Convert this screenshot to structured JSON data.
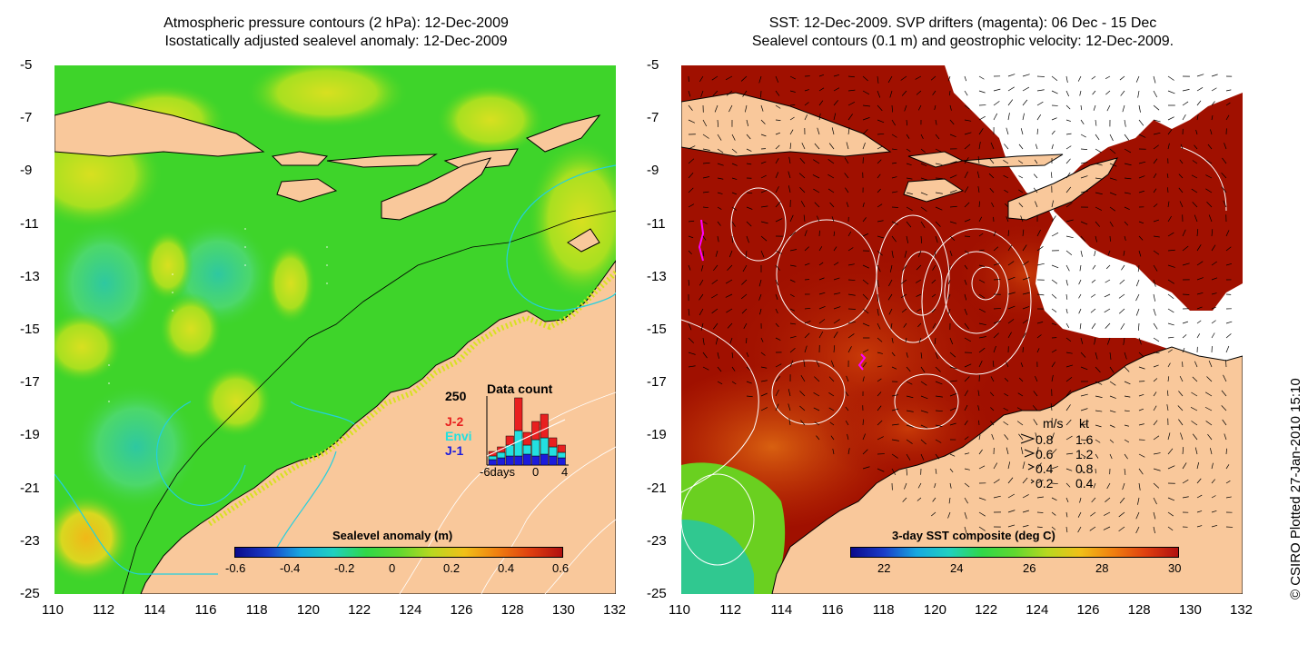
{
  "left_panel": {
    "title_line1": "Atmospheric pressure contours (2 hPa): 12-Dec-2009",
    "title_line2": "Isostatically adjusted sealevel anomaly: 12-Dec-2009",
    "colorbar_title": "Sealevel anomaly (m)",
    "colorbar_ticks": [
      "-0.6",
      "-0.4",
      "-0.2",
      "0",
      "0.2",
      "0.4",
      "0.6"
    ],
    "inset": {
      "title": "Data count",
      "ymax": "250",
      "xlabels": [
        "-6days",
        "0",
        "4"
      ],
      "legend": [
        {
          "label": "J-2",
          "color": "#e82020"
        },
        {
          "label": "Envi",
          "color": "#22e0e0"
        },
        {
          "label": "J-1",
          "color": "#1c1cdc"
        }
      ]
    }
  },
  "right_panel": {
    "title_line1": "SST: 12-Dec-2009. SVP drifters (magenta): 06 Dec - 15 Dec",
    "title_line2": "Sealevel contours (0.1 m) and geostrophic velocity: 12-Dec-2009.",
    "colorbar_title": "3-day SST composite (deg C)",
    "colorbar_ticks": [
      "22",
      "24",
      "26",
      "28",
      "30"
    ],
    "velocity_legend": {
      "header_ms": "m/s",
      "header_kt": "kt",
      "rows": [
        {
          "ms": "0.8",
          "kt": "1.6"
        },
        {
          "ms": "0.6",
          "kt": "1.2"
        },
        {
          "ms": "0.4",
          "kt": "0.8"
        },
        {
          "ms": "0.2",
          "kt": "0.4"
        }
      ]
    }
  },
  "axes": {
    "x_ticks": [
      "110",
      "112",
      "114",
      "116",
      "118",
      "120",
      "122",
      "124",
      "126",
      "128",
      "130",
      "132"
    ],
    "y_ticks": [
      "-5",
      "-7",
      "-9",
      "-11",
      "-13",
      "-15",
      "-17",
      "-19",
      "-21",
      "-23",
      "-25"
    ]
  },
  "copyright": "© CSIRO Plotted 27-Jan-2010 15:10",
  "colors": {
    "land": "#f9c89b",
    "sea_green": "#3ed42a",
    "sst_dark_red": "#a01000",
    "sst_red": "#c83a08",
    "contour_cyan": "#22d0e0",
    "drifter_magenta": "#ff00ff"
  }
}
